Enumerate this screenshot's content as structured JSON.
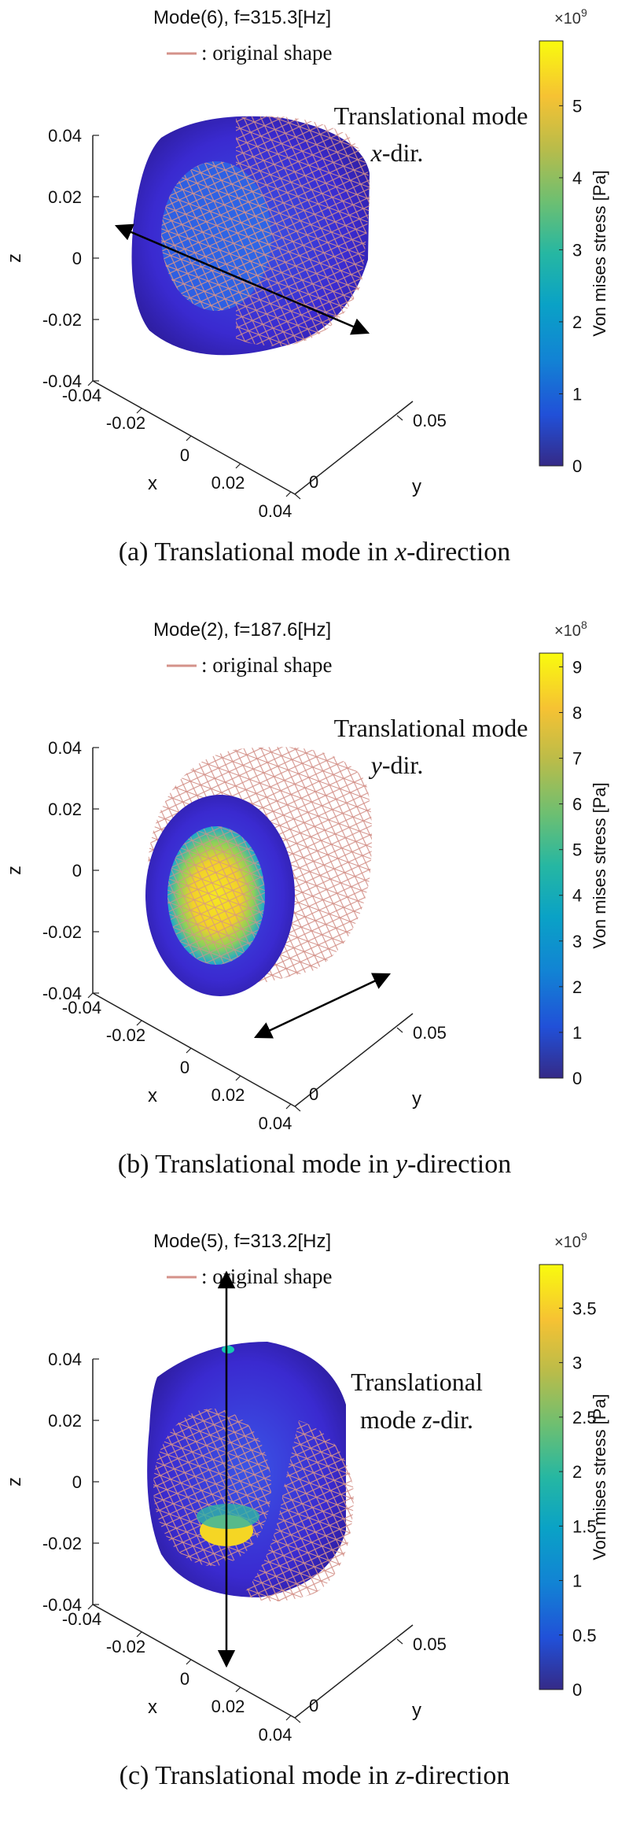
{
  "panels": [
    {
      "id": "a",
      "title": "Mode(6), f=315.3[Hz]",
      "legend_label": ": original shape",
      "annotation_line1": "Translational mode",
      "annotation_line2_var": "x",
      "annotation_line2_rest": "-dir.",
      "caption_prefix": "(a)  Translational  mode  in  ",
      "caption_var": "x",
      "caption_suffix": "-direction",
      "z_ticks": [
        "0.04",
        "0.02",
        "0",
        "-0.02",
        "-0.04"
      ],
      "x_ticks": [
        "-0.04",
        "-0.02",
        "0",
        "0.02",
        "0.04"
      ],
      "y_ticks": [
        "0",
        "0.05"
      ],
      "x_label": "x",
      "y_label": "y",
      "z_label": "z",
      "colorbar": {
        "exponent": "×10",
        "power": "9",
        "label": "Von mises stress [Pa]",
        "ticks": [
          "0",
          "1",
          "2",
          "3",
          "4",
          "5"
        ],
        "min": 0,
        "max": 5.9
      },
      "arrow_direction": "x",
      "hot_core": false
    },
    {
      "id": "b",
      "title": "Mode(2), f=187.6[Hz]",
      "legend_label": ": original shape",
      "annotation_line1": "Translational mode",
      "annotation_line2_var": "y",
      "annotation_line2_rest": "-dir.",
      "caption_prefix": "(b)  Translational  mode  in  ",
      "caption_var": "y",
      "caption_suffix": "-direction",
      "z_ticks": [
        "0.04",
        "0.02",
        "0",
        "-0.02",
        "-0.04"
      ],
      "x_ticks": [
        "-0.04",
        "-0.02",
        "0",
        "0.02",
        "0.04"
      ],
      "y_ticks": [
        "0",
        "0.05"
      ],
      "x_label": "x",
      "y_label": "y",
      "z_label": "z",
      "colorbar": {
        "exponent": "×10",
        "power": "8",
        "label": "Von mises stress [Pa]",
        "ticks": [
          "0",
          "1",
          "2",
          "3",
          "4",
          "5",
          "6",
          "7",
          "8",
          "9"
        ],
        "min": 0,
        "max": 9.3
      },
      "arrow_direction": "y",
      "hot_core": true
    },
    {
      "id": "c",
      "title": "Mode(5), f=313.2[Hz]",
      "legend_label": ": original shape",
      "annotation_line1": "Translational",
      "annotation_line2_var": "z",
      "annotation_line2_rest": "-dir.",
      "annotation_line2_prefix": "mode ",
      "caption_prefix": "(c)  Translational  mode  in  ",
      "caption_var": "z",
      "caption_suffix": "-direction",
      "z_ticks": [
        "0.04",
        "0.02",
        "0",
        "-0.02",
        "-0.04"
      ],
      "x_ticks": [
        "-0.04",
        "-0.02",
        "0",
        "0.02",
        "0.04"
      ],
      "y_ticks": [
        "0",
        "0.05"
      ],
      "x_label": "x",
      "y_label": "y",
      "z_label": "z",
      "colorbar": {
        "exponent": "×10",
        "power": "9",
        "label": "Von mises stress [Pa]",
        "ticks": [
          "0",
          "0.5",
          "1",
          "1.5",
          "2",
          "2.5",
          "3",
          "3.5"
        ],
        "min": 0,
        "max": 3.9
      },
      "arrow_direction": "z",
      "hot_core": true
    }
  ],
  "colors": {
    "mesh": "#d4928a",
    "body_dark": "#3d1fa0",
    "body_mid": "#2f5ee0",
    "arrow": "#000000"
  }
}
